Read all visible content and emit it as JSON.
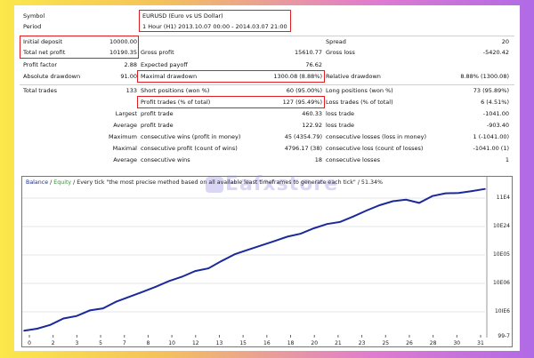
{
  "report": {
    "symbol_label": "Symbol",
    "symbol_value": "EURUSD (Euro vs US Dollar)",
    "period_label": "Period",
    "period_value": "1 Hour (H1) 2013.10.07 00:00 - 2014.03.07 21:00",
    "initial_deposit_label": "Initial deposit",
    "initial_deposit_value": "10000.00",
    "spread_label": "Spread",
    "spread_value": "20",
    "total_net_profit_label": "Total net profit",
    "total_net_profit_value": "10190.35",
    "gross_profit_label": "Gross profit",
    "gross_profit_value": "15610.77",
    "gross_loss_label": "Gross loss",
    "gross_loss_value": "-5420.42",
    "profit_factor_label": "Profit factor",
    "profit_factor_value": "2.88",
    "expected_payoff_label": "Expected payoff",
    "expected_payoff_value": "76.62",
    "absolute_drawdown_label": "Absolute drawdown",
    "absolute_drawdown_value": "91.00",
    "maximal_drawdown_label": "Maximal drawdown",
    "maximal_drawdown_value": "1300.08 (8.88%)",
    "relative_drawdown_label": "Relative drawdown",
    "relative_drawdown_value": "8.88% (1300.08)",
    "total_trades_label": "Total trades",
    "total_trades_value": "133",
    "short_positions_label": "Short positions (won %)",
    "short_positions_value": "60 (95.00%)",
    "long_positions_label": "Long positions (won %)",
    "long_positions_value": "73 (95.89%)",
    "profit_trades_label": "Profit trades (% of total)",
    "profit_trades_value": "127 (95.49%)",
    "loss_trades_label": "Loss trades (% of total)",
    "loss_trades_value": "6 (4.51%)",
    "largest_label": "Largest",
    "largest_profit_label": "profit trade",
    "largest_profit_value": "460.33",
    "largest_loss_label": "loss trade",
    "largest_loss_value": "-1041.00",
    "average_label": "Average",
    "average_profit_label": "profit trade",
    "average_profit_value": "122.92",
    "average_loss_label": "loss trade",
    "average_loss_value": "-903.40",
    "maximum_label": "Maximum",
    "max_cons_wins_label": "consecutive wins (profit in money)",
    "max_cons_wins_value": "45 (4354.79)",
    "max_cons_losses_label": "consecutive losses (loss in money)",
    "max_cons_losses_value": "1 (-1041.00)",
    "maximal_label": "Maximal",
    "maximal_cons_profit_label": "consecutive profit (count of wins)",
    "maximal_cons_profit_value": "4796.17 (38)",
    "maximal_cons_loss_label": "consecutive loss (count of losses)",
    "maximal_cons_loss_value": "-1041.00 (1)",
    "average2_label": "Average",
    "avg_cons_wins_label": "consecutive wins",
    "avg_cons_wins_value": "18",
    "avg_cons_losses_label": "consecutive losses",
    "avg_cons_losses_value": "1"
  },
  "chart": {
    "legend_balance": "Balance",
    "legend_sep": " / ",
    "legend_equity": "Equity",
    "legend_rest": " / Every tick \"the most precise method based on all available least timeframes to generate each tick\" / 51.34%",
    "watermark": "Eafxstore",
    "y_labels": [
      "11E4",
      "10E24",
      "10E05",
      "10E06",
      "10IE6",
      "99-7"
    ],
    "colors": {
      "balance": "#1b2a9a",
      "grid": "#e6e6e6"
    }
  },
  "chart_data": {
    "type": "line",
    "title": "",
    "xlabel": "",
    "ylabel": "",
    "x_ticks": [
      "0",
      "2",
      "3",
      "5",
      "7",
      "8",
      "10",
      "12",
      "13",
      "15",
      "16",
      "18",
      "20",
      "21",
      "23",
      "25",
      "26",
      "28",
      "30",
      "31"
    ],
    "series": [
      {
        "name": "Balance",
        "x": [
          0,
          1,
          2,
          3,
          4,
          5,
          6,
          7,
          8,
          9,
          10,
          11,
          12,
          13,
          14,
          15,
          16,
          17,
          18,
          19,
          20,
          21,
          22,
          23,
          24,
          25,
          26,
          27,
          28,
          29,
          30,
          31,
          32,
          33,
          34,
          35
        ],
        "values": [
          10000,
          10150,
          10420,
          10880,
          11060,
          11460,
          11610,
          12090,
          12440,
          12790,
          13160,
          13570,
          13880,
          14290,
          14480,
          15010,
          15500,
          15820,
          16130,
          16440,
          16760,
          16970,
          17360,
          17670,
          17820,
          18210,
          18640,
          19020,
          19310,
          19420,
          19190,
          19680,
          19880,
          19900,
          20040,
          20190
        ]
      }
    ],
    "ylim": [
      9700,
      20300
    ]
  }
}
